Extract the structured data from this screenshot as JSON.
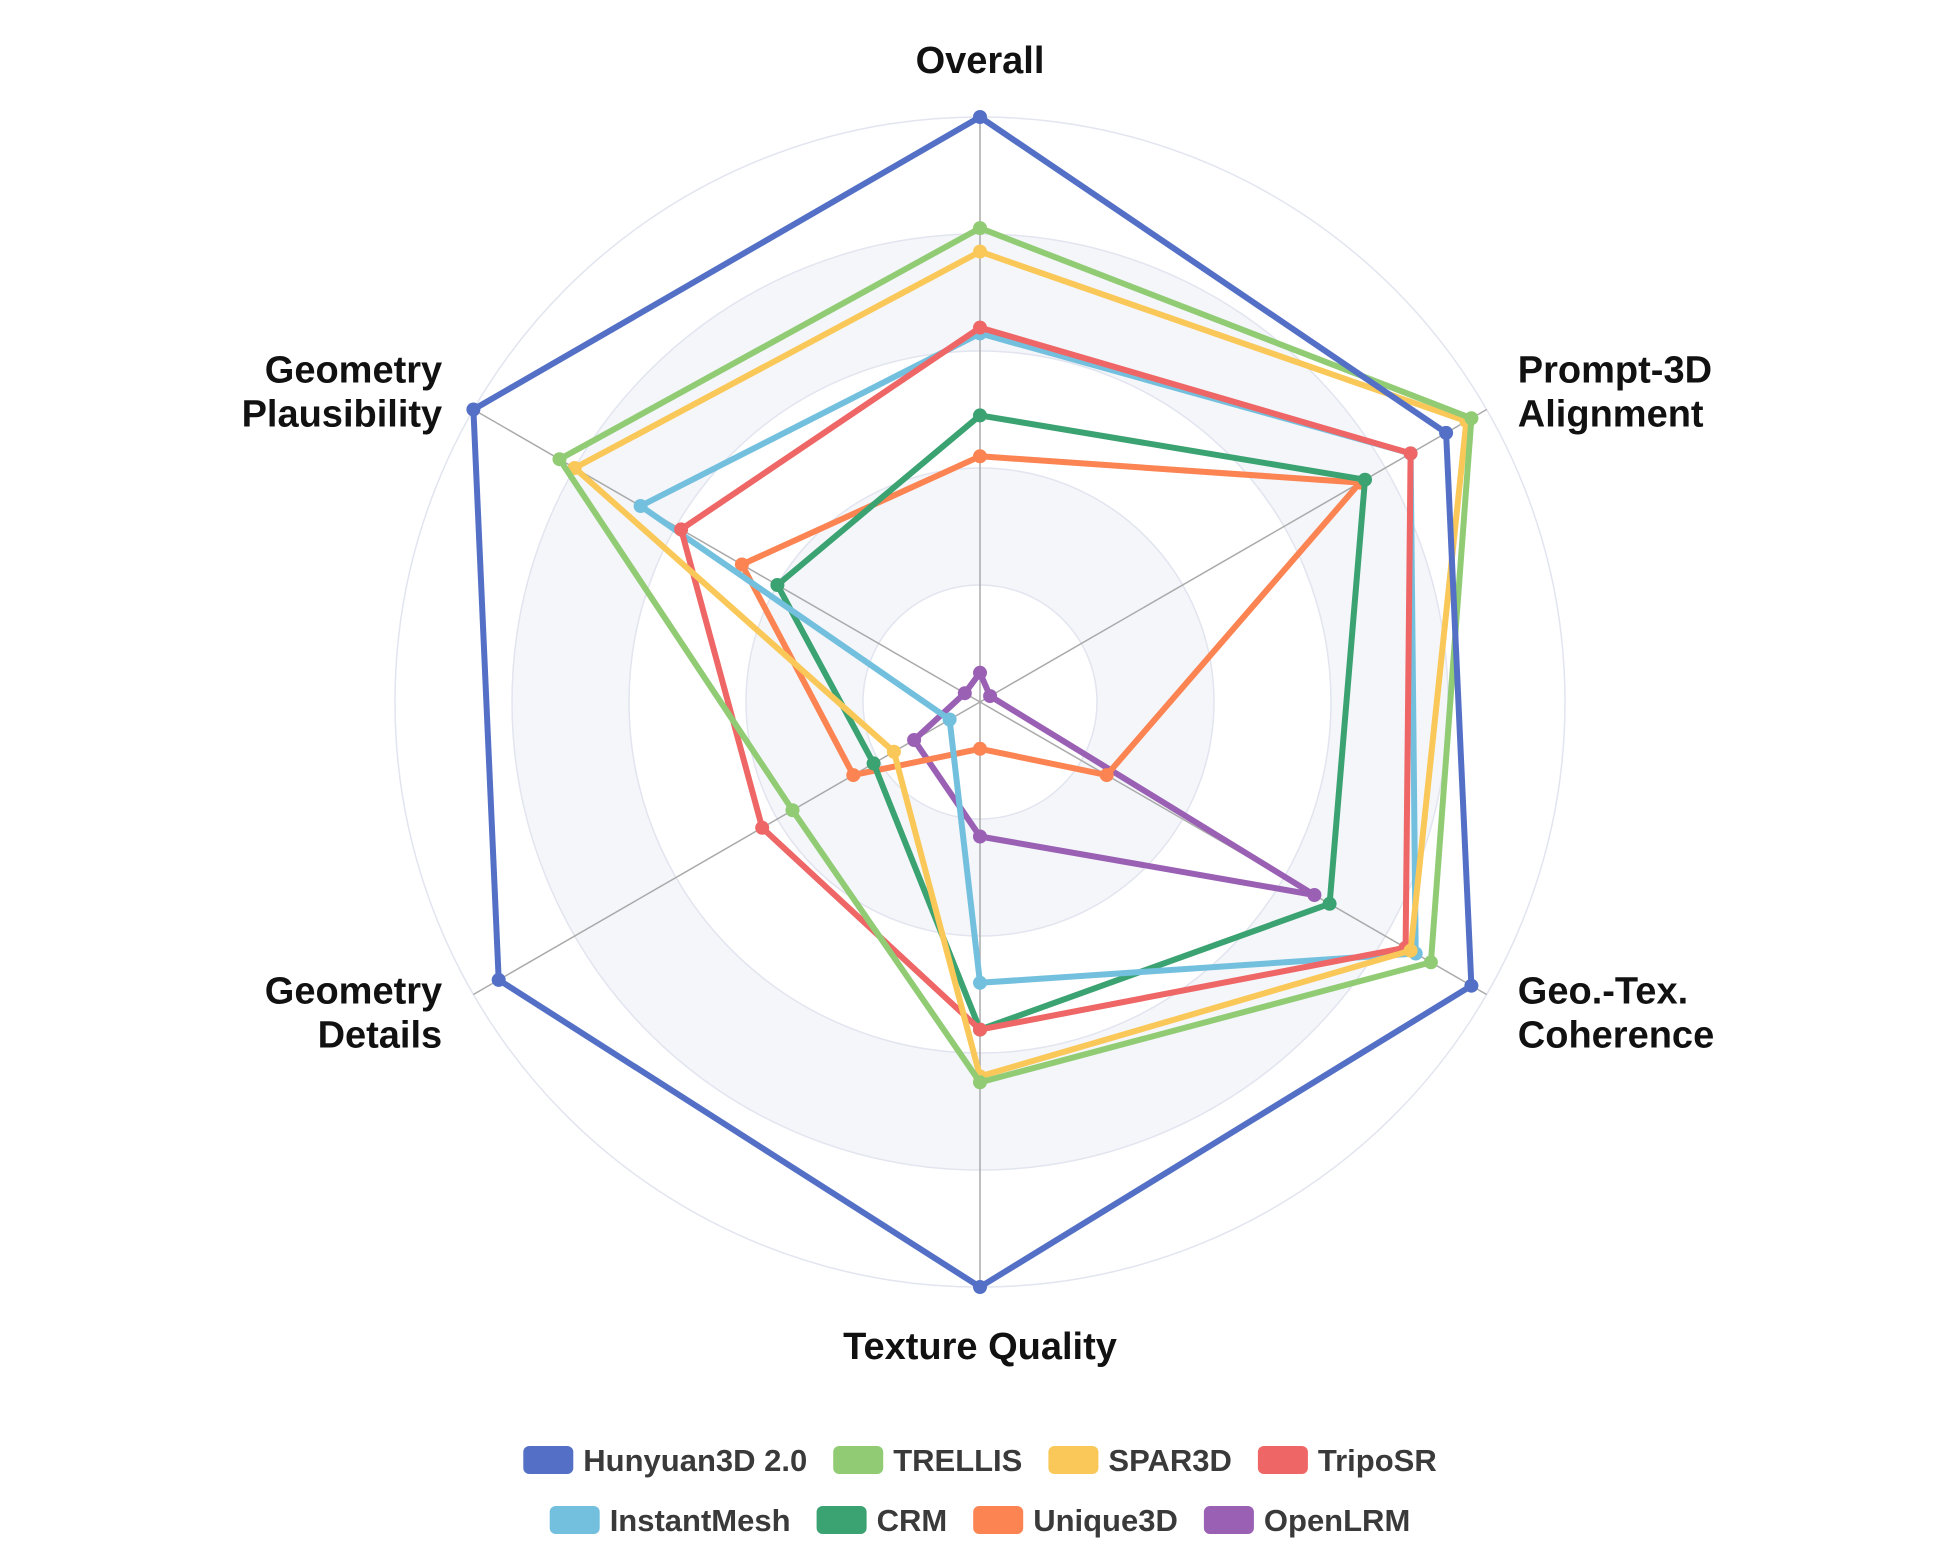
{
  "chart_data": {
    "type": "radar",
    "title": "",
    "axes": [
      {
        "label": [
          "Overall"
        ]
      },
      {
        "label": [
          "Prompt-3D",
          "Alignment"
        ]
      },
      {
        "label": [
          "Geo.-Tex.",
          "Coherence"
        ]
      },
      {
        "label": [
          "Texture Quality"
        ]
      },
      {
        "label": [
          "Geometry",
          "Details"
        ]
      },
      {
        "label": [
          "Geometry",
          "Plausibility"
        ]
      }
    ],
    "range": [
      0,
      1
    ],
    "rings": 5,
    "grid": true,
    "legend_position": "bottom",
    "series": [
      {
        "name": "Hunyuan3D 2.0",
        "color": "#5470c6",
        "values": [
          1.0,
          0.92,
          0.97,
          1.0,
          0.95,
          1.0
        ]
      },
      {
        "name": "TRELLIS",
        "color": "#91cc75",
        "values": [
          0.81,
          0.97,
          0.89,
          0.65,
          0.37,
          0.83
        ]
      },
      {
        "name": "SPAR3D",
        "color": "#fac858",
        "values": [
          0.77,
          0.96,
          0.85,
          0.64,
          0.17,
          0.8
        ]
      },
      {
        "name": "TripoSR",
        "color": "#ee6666",
        "values": [
          0.64,
          0.85,
          0.84,
          0.56,
          0.43,
          0.59
        ]
      },
      {
        "name": "InstantMesh",
        "color": "#73c0de",
        "values": [
          0.63,
          0.85,
          0.86,
          0.48,
          0.06,
          0.67
        ]
      },
      {
        "name": "CRM",
        "color": "#3ba272",
        "values": [
          0.49,
          0.76,
          0.69,
          0.56,
          0.21,
          0.4
        ]
      },
      {
        "name": "Unique3D",
        "color": "#fc8452",
        "values": [
          0.42,
          0.75,
          0.25,
          0.08,
          0.25,
          0.47
        ]
      },
      {
        "name": "OpenLRM",
        "color": "#9a60b4",
        "values": [
          0.05,
          0.02,
          0.66,
          0.23,
          0.13,
          0.03
        ]
      }
    ]
  }
}
